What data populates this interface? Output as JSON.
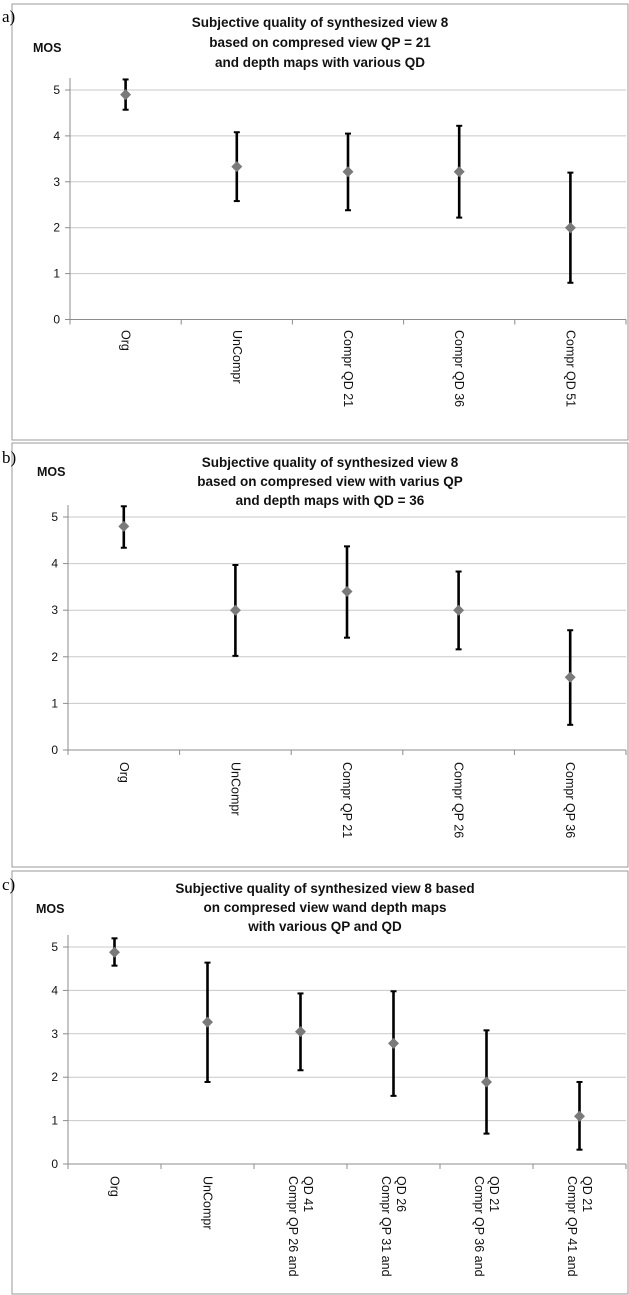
{
  "colors": {
    "frame": "#999999",
    "grid": "#c8c8c8",
    "axis": "#8c8c8c",
    "errorbar": "#000000",
    "marker": "#7a7a7a"
  },
  "chart_data": [
    {
      "type": "scatter",
      "panel_label": "a)",
      "title": [
        "Subjective quality of synthesized view 8",
        "based on compresed view QP = 21",
        "and depth maps with various QD"
      ],
      "ylabel": "MOS",
      "ylim": [
        0,
        5
      ],
      "yticks": [
        "0",
        "1",
        "2",
        "3",
        "4",
        "5"
      ],
      "grid": true,
      "categories": [
        [
          "Org"
        ],
        [
          "UnCompr"
        ],
        [
          "Compr QD 21"
        ],
        [
          "Compr QD 36"
        ],
        [
          "Compr QD 51"
        ]
      ],
      "values": [
        4.9,
        3.33,
        3.22,
        3.22,
        2.0
      ],
      "error_low": [
        4.57,
        2.58,
        2.38,
        2.22,
        0.8
      ],
      "error_high": [
        5.23,
        4.08,
        4.05,
        4.22,
        3.2
      ]
    },
    {
      "type": "scatter",
      "panel_label": "b)",
      "title": [
        "Subjective quality of synthesized view 8",
        "based on compresed view with varius QP",
        "and depth maps with QD = 36"
      ],
      "ylabel": "MOS",
      "ylim": [
        0,
        5
      ],
      "yticks": [
        "0",
        "1",
        "2",
        "3",
        "4",
        "5"
      ],
      "grid": true,
      "categories": [
        [
          "Org"
        ],
        [
          "UnCompr"
        ],
        [
          "Compr QP 21"
        ],
        [
          "Compr QP 26"
        ],
        [
          "Compr QP 36"
        ]
      ],
      "values": [
        4.8,
        3.0,
        3.4,
        3.0,
        1.56
      ],
      "error_low": [
        4.34,
        2.02,
        2.41,
        2.16,
        0.54
      ],
      "error_high": [
        5.23,
        3.97,
        4.37,
        3.83,
        2.57
      ]
    },
    {
      "type": "scatter",
      "panel_label": "c)",
      "title": [
        "Subjective quality of synthesized view 8 based",
        "on compresed view wand depth maps",
        "with various QP and QD"
      ],
      "ylabel": "MOS",
      "ylim": [
        0,
        5
      ],
      "yticks": [
        "0",
        "1",
        "2",
        "3",
        "4",
        "5"
      ],
      "grid": true,
      "categories": [
        [
          "Org"
        ],
        [
          "UnCompr"
        ],
        [
          "Compr QP 26 and",
          "QD 41"
        ],
        [
          "Compr QP 31 and",
          "QD 26"
        ],
        [
          "Compr QP 36 and",
          "QD 21"
        ],
        [
          "Compr QP 41 and",
          "QD 21"
        ]
      ],
      "values": [
        4.88,
        3.27,
        3.05,
        2.78,
        1.89,
        1.1
      ],
      "error_low": [
        4.57,
        1.89,
        2.16,
        1.57,
        0.7,
        0.33
      ],
      "error_high": [
        5.2,
        4.64,
        3.93,
        3.98,
        3.08,
        1.89
      ]
    }
  ]
}
